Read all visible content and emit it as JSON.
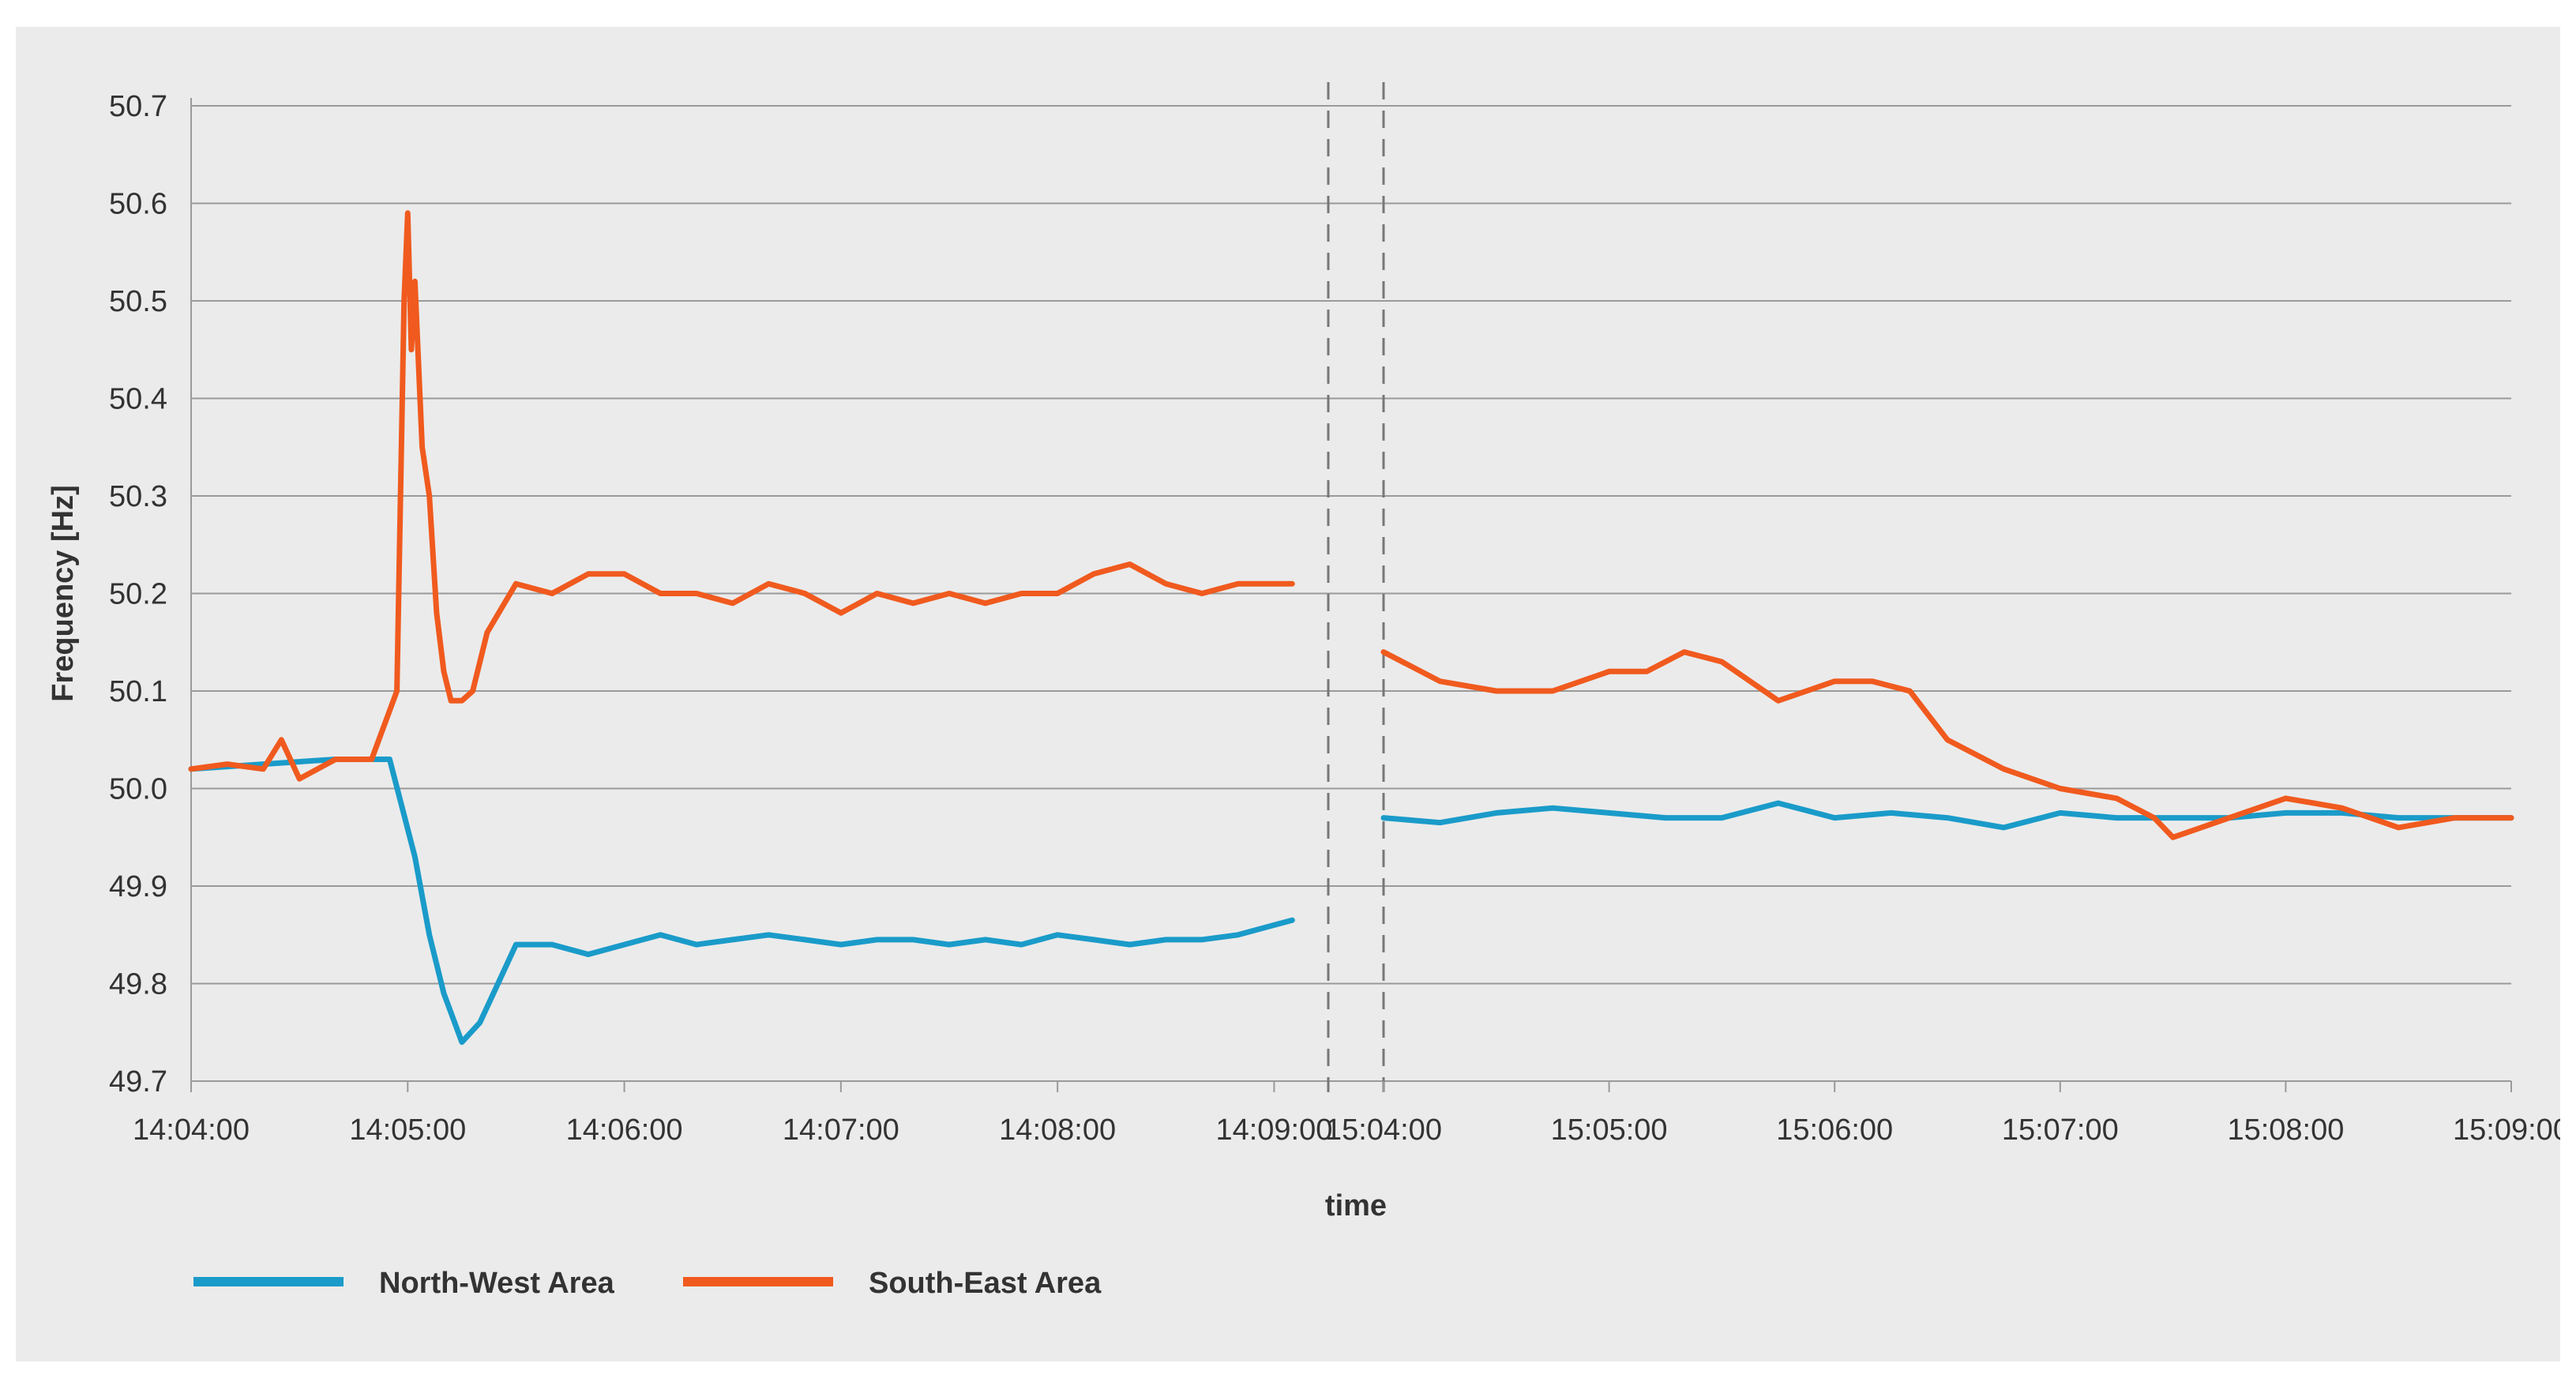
{
  "chart_data": {
    "type": "line",
    "title": "",
    "xlabel": "time",
    "ylabel": "Frequency [Hz]",
    "ylim": [
      49.7,
      50.7
    ],
    "y_ticks": [
      "50.7",
      "50.6",
      "50.5",
      "50.4",
      "50.3",
      "50.2",
      "50.1",
      "50.0",
      "49.9",
      "49.8",
      "49.7"
    ],
    "grid": "horizontal",
    "legend_position": "bottom-left",
    "panels": [
      {
        "x_ticks": [
          "14:04:00",
          "14:05:00",
          "14:06:00",
          "14:07:00",
          "14:08:00",
          "14:09:00"
        ],
        "xlim": [
          "14:04:00",
          "14:09:15"
        ],
        "series": [
          {
            "name": "North-West Area",
            "color": "#1a9bc9",
            "x": [
              "14:04:00",
              "14:04:20",
              "14:04:40",
              "14:04:55",
              "14:05:02",
              "14:05:06",
              "14:05:10",
              "14:05:15",
              "14:05:20",
              "14:05:25",
              "14:05:30",
              "14:05:40",
              "14:05:50",
              "14:06:00",
              "14:06:10",
              "14:06:20",
              "14:06:30",
              "14:06:40",
              "14:06:50",
              "14:07:00",
              "14:07:10",
              "14:07:20",
              "14:07:30",
              "14:07:40",
              "14:07:50",
              "14:08:00",
              "14:08:10",
              "14:08:20",
              "14:08:30",
              "14:08:40",
              "14:08:50",
              "14:09:00",
              "14:09:05"
            ],
            "values": [
              50.02,
              50.025,
              50.03,
              50.03,
              49.93,
              49.85,
              49.79,
              49.74,
              49.76,
              49.8,
              49.84,
              49.84,
              49.83,
              49.84,
              49.85,
              49.84,
              49.845,
              49.85,
              49.845,
              49.84,
              49.845,
              49.845,
              49.84,
              49.845,
              49.84,
              49.85,
              49.845,
              49.84,
              49.845,
              49.845,
              49.85,
              49.86,
              49.865
            ]
          },
          {
            "name": "South-East Area",
            "color": "#f05a1e",
            "x": [
              "14:04:00",
              "14:04:10",
              "14:04:20",
              "14:04:25",
              "14:04:30",
              "14:04:40",
              "14:04:50",
              "14:04:57",
              "14:04:59",
              "14:05:00",
              "14:05:01",
              "14:05:02",
              "14:05:04",
              "14:05:06",
              "14:05:08",
              "14:05:10",
              "14:05:12",
              "14:05:15",
              "14:05:18",
              "14:05:22",
              "14:05:30",
              "14:05:40",
              "14:05:50",
              "14:06:00",
              "14:06:10",
              "14:06:20",
              "14:06:30",
              "14:06:40",
              "14:06:50",
              "14:07:00",
              "14:07:10",
              "14:07:20",
              "14:07:30",
              "14:07:40",
              "14:07:50",
              "14:08:00",
              "14:08:10",
              "14:08:20",
              "14:08:30",
              "14:08:40",
              "14:08:50",
              "14:09:00",
              "14:09:05"
            ],
            "values": [
              50.02,
              50.025,
              50.02,
              50.05,
              50.01,
              50.03,
              50.03,
              50.1,
              50.5,
              50.59,
              50.45,
              50.52,
              50.35,
              50.3,
              50.18,
              50.12,
              50.09,
              50.09,
              50.1,
              50.16,
              50.21,
              50.2,
              50.22,
              50.22,
              50.2,
              50.2,
              50.19,
              50.21,
              50.2,
              50.18,
              50.2,
              50.19,
              50.2,
              50.19,
              50.2,
              50.2,
              50.22,
              50.23,
              50.21,
              50.2,
              50.21,
              50.21,
              50.21
            ]
          }
        ]
      },
      {
        "x_ticks": [
          "15:04:00",
          "15:05:00",
          "15:06:00",
          "15:07:00",
          "15:08:00",
          "15:09:00"
        ],
        "xlim": [
          "15:04:00",
          "15:09:00"
        ],
        "series": [
          {
            "name": "North-West Area",
            "color": "#1a9bc9",
            "x": [
              "15:04:00",
              "15:04:15",
              "15:04:30",
              "15:04:45",
              "15:05:00",
              "15:05:15",
              "15:05:30",
              "15:05:45",
              "15:06:00",
              "15:06:15",
              "15:06:30",
              "15:06:45",
              "15:07:00",
              "15:07:15",
              "15:07:30",
              "15:07:45",
              "15:08:00",
              "15:08:15",
              "15:08:30",
              "15:08:45",
              "15:09:00"
            ],
            "values": [
              49.97,
              49.965,
              49.975,
              49.98,
              49.975,
              49.97,
              49.97,
              49.985,
              49.97,
              49.975,
              49.97,
              49.96,
              49.975,
              49.97,
              49.97,
              49.97,
              49.975,
              49.975,
              49.97,
              49.97,
              49.97
            ]
          },
          {
            "name": "South-East Area",
            "color": "#f05a1e",
            "x": [
              "15:04:00",
              "15:04:15",
              "15:04:30",
              "15:04:45",
              "15:05:00",
              "15:05:10",
              "15:05:20",
              "15:05:30",
              "15:05:45",
              "15:06:00",
              "15:06:10",
              "15:06:20",
              "15:06:30",
              "15:06:45",
              "15:07:00",
              "15:07:15",
              "15:07:25",
              "15:07:30",
              "15:07:45",
              "15:08:00",
              "15:08:15",
              "15:08:30",
              "15:08:45",
              "15:09:00"
            ],
            "values": [
              50.14,
              50.11,
              50.1,
              50.1,
              50.12,
              50.12,
              50.14,
              50.13,
              50.09,
              50.11,
              50.11,
              50.1,
              50.05,
              50.02,
              50.0,
              49.99,
              49.97,
              49.95,
              49.97,
              49.99,
              49.98,
              49.96,
              49.97,
              49.97
            ]
          }
        ]
      }
    ],
    "legend": [
      {
        "name": "North-West Area",
        "color": "#1a9bc9"
      },
      {
        "name": "South-East Area",
        "color": "#f05a1e"
      }
    ]
  }
}
